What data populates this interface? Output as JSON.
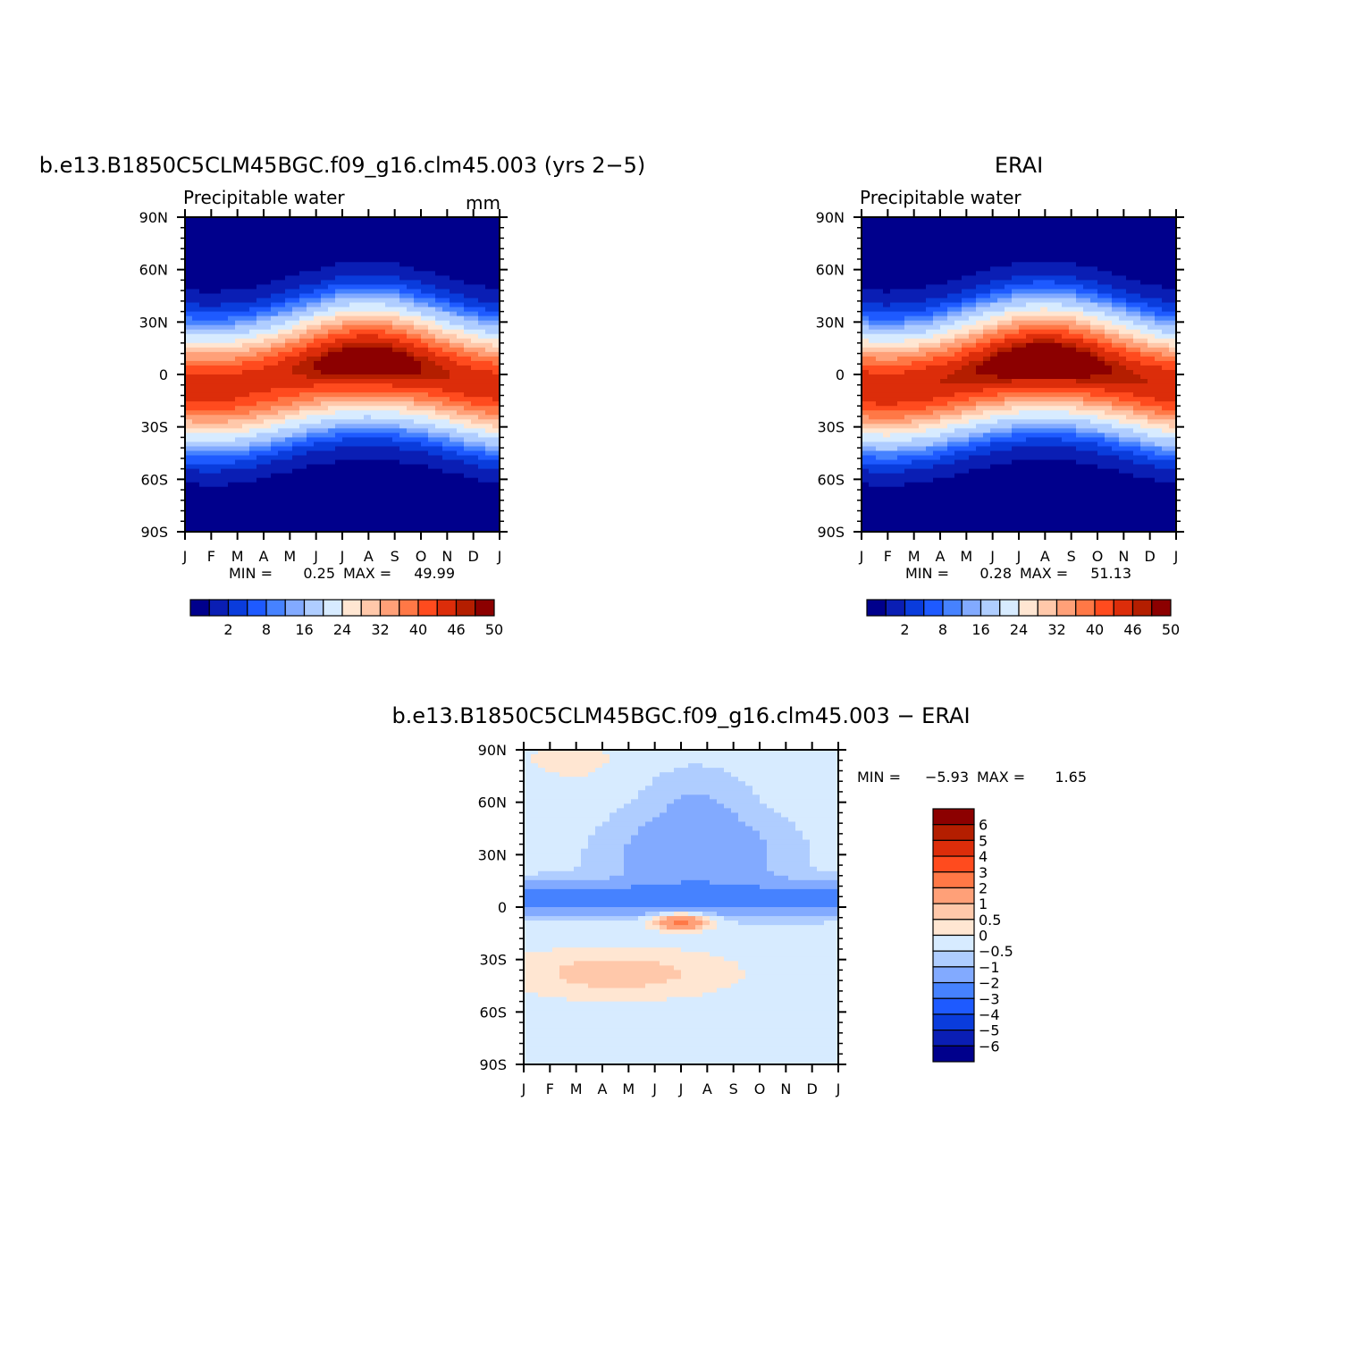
{
  "chart_data": [
    {
      "type": "heatmap",
      "title": "b.e13.B1850C5CLM45BGC.f09_g16.clm45.003 (yrs 2−5)",
      "subtitle": "Precipitable water",
      "units": "mm",
      "xlabel": "",
      "ylabel": "",
      "x_tick_labels": [
        "J",
        "F",
        "M",
        "A",
        "M",
        "J",
        "J",
        "A",
        "S",
        "O",
        "N",
        "D",
        "J"
      ],
      "y_tick_labels": [
        "90N",
        "60N",
        "30N",
        "0",
        "30S",
        "60S",
        "90S"
      ],
      "y_range": [
        -90,
        90
      ],
      "stats": {
        "min_label": "MIN =",
        "min": "0.25",
        "max_label": "MAX =",
        "max": "49.99"
      },
      "colorbar_labels": [
        "2",
        "8",
        "16",
        "24",
        "32",
        "40",
        "46",
        "50"
      ],
      "colorbar_colors": [
        "#00008c",
        "#0a1eb4",
        "#0a3cdc",
        "#1e5aff",
        "#4682ff",
        "#82aaff",
        "#afcdff",
        "#d7ebff",
        "#ffe6d2",
        "#ffc8aa",
        "#ffa078",
        "#ff7846",
        "#ff4b1e",
        "#dc2d0a",
        "#b41e00",
        "#8c0000"
      ],
      "colorbar_position": "below",
      "contour_levels": [
        2,
        4,
        6,
        8,
        10,
        12,
        16,
        20,
        24,
        28,
        32,
        36,
        40,
        44,
        46,
        48,
        50
      ],
      "peak_value": 49.99
    },
    {
      "type": "heatmap",
      "title": "ERAI",
      "subtitle": "Precipitable water",
      "units": "",
      "xlabel": "",
      "ylabel": "",
      "x_tick_labels": [
        "J",
        "F",
        "M",
        "A",
        "M",
        "J",
        "J",
        "A",
        "S",
        "O",
        "N",
        "D",
        "J"
      ],
      "y_tick_labels": [
        "90N",
        "60N",
        "30N",
        "0",
        "30S",
        "60S",
        "90S"
      ],
      "y_range": [
        -90,
        90
      ],
      "stats": {
        "min_label": "MIN =",
        "min": "0.28",
        "max_label": "MAX =",
        "max": "51.13"
      },
      "colorbar_labels": [
        "2",
        "8",
        "16",
        "24",
        "32",
        "40",
        "46",
        "50"
      ],
      "colorbar_colors": [
        "#00008c",
        "#0a1eb4",
        "#0a3cdc",
        "#1e5aff",
        "#4682ff",
        "#82aaff",
        "#afcdff",
        "#d7ebff",
        "#ffe6d2",
        "#ffc8aa",
        "#ffa078",
        "#ff7846",
        "#ff4b1e",
        "#dc2d0a",
        "#b41e00",
        "#8c0000"
      ],
      "colorbar_position": "below",
      "contour_levels": [
        2,
        4,
        6,
        8,
        10,
        12,
        16,
        20,
        24,
        28,
        32,
        36,
        40,
        44,
        46,
        48,
        50
      ],
      "peak_value": 51.13
    },
    {
      "type": "heatmap",
      "title": "b.e13.B1850C5CLM45BGC.f09_g16.clm45.003 − ERAI",
      "subtitle": "",
      "units": "",
      "xlabel": "",
      "ylabel": "",
      "x_tick_labels": [
        "J",
        "F",
        "M",
        "A",
        "M",
        "J",
        "J",
        "A",
        "S",
        "O",
        "N",
        "D",
        "J"
      ],
      "y_tick_labels": [
        "90N",
        "60N",
        "30N",
        "0",
        "30S",
        "60S",
        "90S"
      ],
      "y_range": [
        -90,
        90
      ],
      "stats": {
        "min_label": "MIN =",
        "min": "−5.93",
        "max_label": "MAX =",
        "max": "1.65"
      },
      "colorbar_labels": [
        "6",
        "5",
        "4",
        "3",
        "2",
        "1",
        "0.5",
        "0",
        "−0.5",
        "−1",
        "−2",
        "−3",
        "−4",
        "−5",
        "−6"
      ],
      "colorbar_colors": [
        "#8c0000",
        "#b41e00",
        "#dc2d0a",
        "#ff4b1e",
        "#ff7846",
        "#ffa078",
        "#ffc8aa",
        "#ffe6d2",
        "#d7ebff",
        "#afcdff",
        "#82aaff",
        "#4682ff",
        "#1e5aff",
        "#0a3cdc",
        "#0a1eb4",
        "#00008c"
      ],
      "colorbar_position": "right",
      "contour_levels": [
        -6,
        -5,
        -4,
        -3,
        -2,
        -1,
        -0.5,
        0,
        0.5,
        1,
        2,
        3,
        4,
        5,
        6
      ]
    }
  ]
}
